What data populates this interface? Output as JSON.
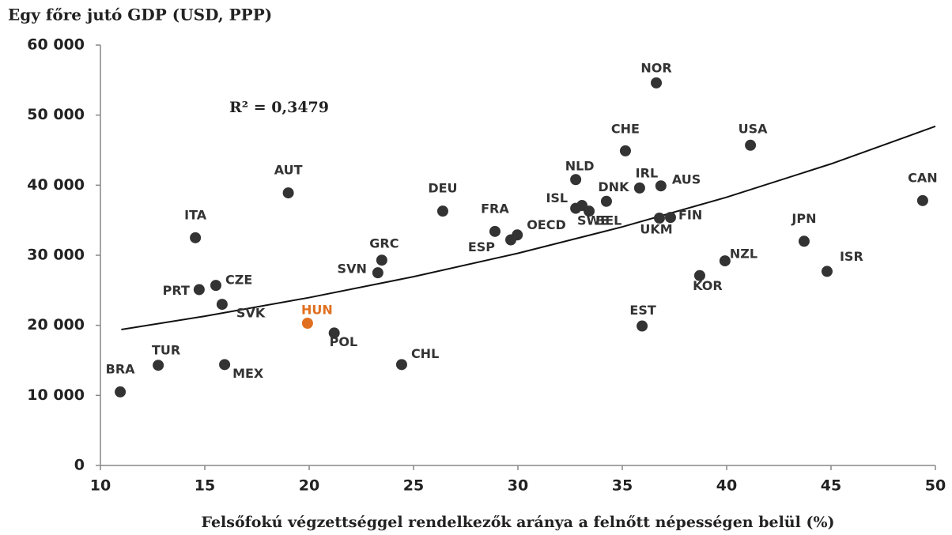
{
  "chart_data": {
    "type": "scatter",
    "title": "Egy főre jutó GDP (USD, PPP)",
    "xlabel": "Felsőfokú végzettséggel rendelkezők aránya a felnőtt népességen belül (%)",
    "annotation": "R² = 0,3479",
    "labels": [
      "BRA",
      "TUR",
      "MEX",
      "PRT",
      "CZE",
      "SVK",
      "ITA",
      "AUT",
      "HUN",
      "POL",
      "SVN",
      "GRC",
      "CHL",
      "DEU",
      "FRA",
      "ESP",
      "OECD",
      "NLD",
      "ISL",
      "SWE",
      "BEL",
      "DNK",
      "IRL",
      "AUS",
      "CHE",
      "NOR",
      "USA",
      "CAN",
      "FIN",
      "UKM",
      "JPN",
      "ISR",
      "NZL",
      "KOR",
      "EST"
    ],
    "x": [
      10.95,
      12.77,
      15.95,
      14.73,
      15.53,
      15.83,
      14.55,
      19.0,
      19.92,
      21.2,
      23.29,
      23.48,
      24.43,
      26.4,
      28.9,
      29.66,
      29.97,
      32.77,
      32.77,
      33.07,
      33.41,
      34.24,
      35.83,
      36.85,
      35.15,
      36.63,
      41.14,
      49.39,
      37.31,
      36.78,
      43.71,
      44.81,
      39.92,
      38.71,
      35.95
    ],
    "y": [
      10500,
      14300,
      14400,
      25100,
      25700,
      23000,
      32500,
      38900,
      20300,
      18900,
      27500,
      29300,
      14400,
      36300,
      33400,
      32200,
      32900,
      40800,
      36700,
      37100,
      36300,
      37700,
      39600,
      39900,
      44900,
      54600,
      45700,
      37800,
      35400,
      35300,
      32000,
      27700,
      29200,
      27100,
      19900
    ],
    "colors": [
      "#333333",
      "#333333",
      "#333333",
      "#333333",
      "#333333",
      "#333333",
      "#333333",
      "#333333",
      "#e07020",
      "#333333",
      "#333333",
      "#333333",
      "#333333",
      "#333333",
      "#333333",
      "#333333",
      "#333333",
      "#333333",
      "#333333",
      "#333333",
      "#333333",
      "#333333",
      "#333333",
      "#333333",
      "#333333",
      "#333333",
      "#333333",
      "#333333",
      "#333333",
      "#333333",
      "#333333",
      "#333333",
      "#333333",
      "#333333",
      "#333333"
    ],
    "trendline": {
      "x": [
        11,
        15,
        20,
        25,
        30,
        35,
        40,
        45,
        50
      ],
      "y": [
        19400,
        21300,
        23960,
        26940,
        30280,
        34050,
        38280,
        43040,
        48400
      ],
      "color": "#111111"
    },
    "xlim": [
      10,
      50
    ],
    "xticks": [
      10,
      15,
      20,
      25,
      30,
      35,
      40,
      45,
      50
    ],
    "ylim": [
      0,
      60000
    ],
    "yticks": [
      0,
      {
        "value": 10000,
        "label": "10 000"
      },
      {
        "value": 20000,
        "label": "20 000"
      },
      {
        "value": 30000,
        "label": "30 000"
      },
      {
        "value": 40000,
        "label": "40 000"
      },
      {
        "value": 50000,
        "label": "50 000"
      },
      {
        "value": 60000,
        "label": "60 000"
      }
    ],
    "grid": false
  }
}
